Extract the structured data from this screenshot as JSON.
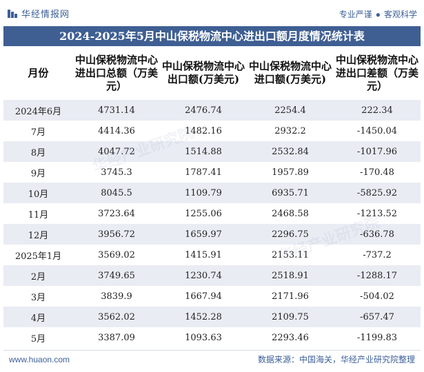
{
  "brand": {
    "name": "华经情报网",
    "tag1": "专业严谨",
    "separator": "●",
    "tag2": "客观科学"
  },
  "title": "2024-2025年5月中山保税物流中心进出口额月度情况统计表",
  "table": {
    "headers": [
      "月份",
      "中山保税物流中心进出口总额（万美元）",
      "中山保税物流中心出口额(万美元)",
      "中山保税物流中心进口额(万美元)",
      "中山保税物流中心进出口差额（万美元）"
    ],
    "rows": [
      [
        "2024年6月",
        "4731.14",
        "2476.74",
        "2254.4",
        "222.34"
      ],
      [
        "7月",
        "4414.36",
        "1482.16",
        "2932.2",
        "-1450.04"
      ],
      [
        "8月",
        "4047.72",
        "1514.88",
        "2532.84",
        "-1017.96"
      ],
      [
        "9月",
        "3745.3",
        "1787.41",
        "1957.89",
        "-170.48"
      ],
      [
        "10月",
        "8045.5",
        "1109.79",
        "6935.71",
        "-5825.92"
      ],
      [
        "11月",
        "3723.64",
        "1255.06",
        "2468.58",
        "-1213.52"
      ],
      [
        "12月",
        "3956.72",
        "1659.97",
        "2296.75",
        "-636.78"
      ],
      [
        "2025年1月",
        "3569.02",
        "1415.91",
        "2153.11",
        "-737.2"
      ],
      [
        "2月",
        "3749.65",
        "1230.74",
        "2518.91",
        "-1288.17"
      ],
      [
        "3月",
        "3839.9",
        "1667.94",
        "2171.96",
        "-504.02"
      ],
      [
        "4月",
        "3562.02",
        "1452.28",
        "2109.75",
        "-657.47"
      ],
      [
        "5月",
        "3387.09",
        "1093.63",
        "2293.46",
        "-1199.83"
      ]
    ]
  },
  "footer": {
    "site": "www.huaon.com",
    "source": "数据来源：中国海关，华经产业研究院整理"
  },
  "watermark": "华经产业研究院",
  "colors": {
    "title_bg": "#3f5f93",
    "brand": "#3b5f98",
    "stripe": "#e9ecf3"
  }
}
